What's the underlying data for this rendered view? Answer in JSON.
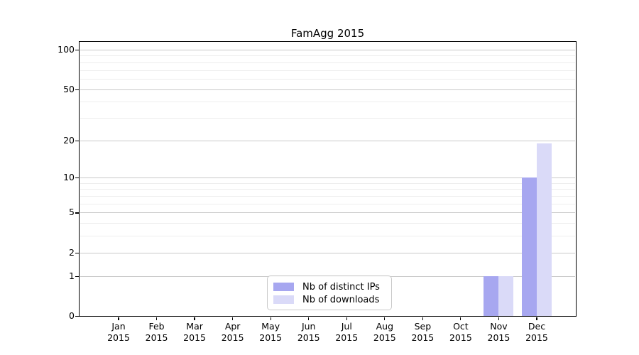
{
  "figure": {
    "background": "#ffffff"
  },
  "chart_data": {
    "type": "bar",
    "title": "FamAgg 2015",
    "categories": [
      {
        "month": "Jan",
        "year": "2015"
      },
      {
        "month": "Feb",
        "year": "2015"
      },
      {
        "month": "Mar",
        "year": "2015"
      },
      {
        "month": "Apr",
        "year": "2015"
      },
      {
        "month": "May",
        "year": "2015"
      },
      {
        "month": "Jun",
        "year": "2015"
      },
      {
        "month": "Jul",
        "year": "2015"
      },
      {
        "month": "Aug",
        "year": "2015"
      },
      {
        "month": "Sep",
        "year": "2015"
      },
      {
        "month": "Oct",
        "year": "2015"
      },
      {
        "month": "Nov",
        "year": "2015"
      },
      {
        "month": "Dec",
        "year": "2015"
      }
    ],
    "series": [
      {
        "name": "Nb of distinct IPs",
        "color": "#a7a7f0",
        "values": [
          0,
          0,
          0,
          0,
          0,
          0,
          0,
          0,
          0,
          0,
          1,
          10
        ]
      },
      {
        "name": "Nb of downloads",
        "color": "#dadaf8",
        "values": [
          0,
          0,
          0,
          0,
          0,
          0,
          0,
          0,
          0,
          0,
          1,
          19
        ]
      }
    ],
    "xlabel": "",
    "ylabel": "",
    "yscale": "log1p",
    "ylim": [
      0,
      100
    ],
    "yticks": [
      0,
      1,
      2,
      5,
      10,
      20,
      50,
      100
    ],
    "minor_yticks": [
      3,
      4,
      6,
      7,
      8,
      9,
      30,
      40,
      60,
      70,
      80,
      90
    ],
    "grid": "horizontal",
    "legend_position": "lower center inside",
    "colors": {
      "major_grid": "#c9c9c9",
      "minor_grid": "#ededed",
      "axis": "#000000",
      "text": "#000000"
    }
  }
}
